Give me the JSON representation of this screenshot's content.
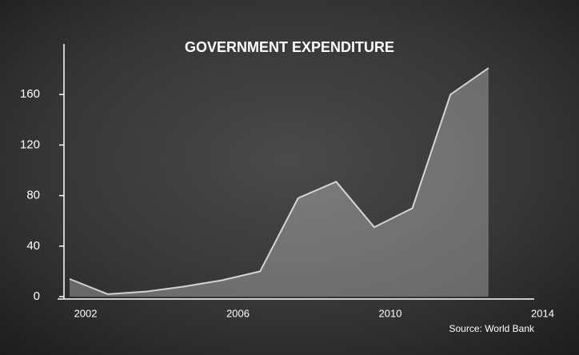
{
  "chart_data": {
    "type": "area",
    "title": "GOVERNMENT EXPENDITURE",
    "source": "Source: World Bank",
    "x": [
      2002,
      2003,
      2004,
      2005,
      2006,
      2007,
      2008,
      2009,
      2010,
      2011,
      2012,
      2013
    ],
    "values": [
      14,
      2,
      4,
      8,
      13,
      20,
      78,
      91,
      55,
      70,
      160,
      181
    ],
    "color": "#ffffff",
    "xlim": [
      2001.6,
      2014.2
    ],
    "xticks": [
      2002,
      2006,
      2010,
      2014
    ],
    "ylim": [
      0,
      200
    ],
    "yticks": [
      0,
      40,
      80,
      120,
      160
    ],
    "grid": false
  }
}
